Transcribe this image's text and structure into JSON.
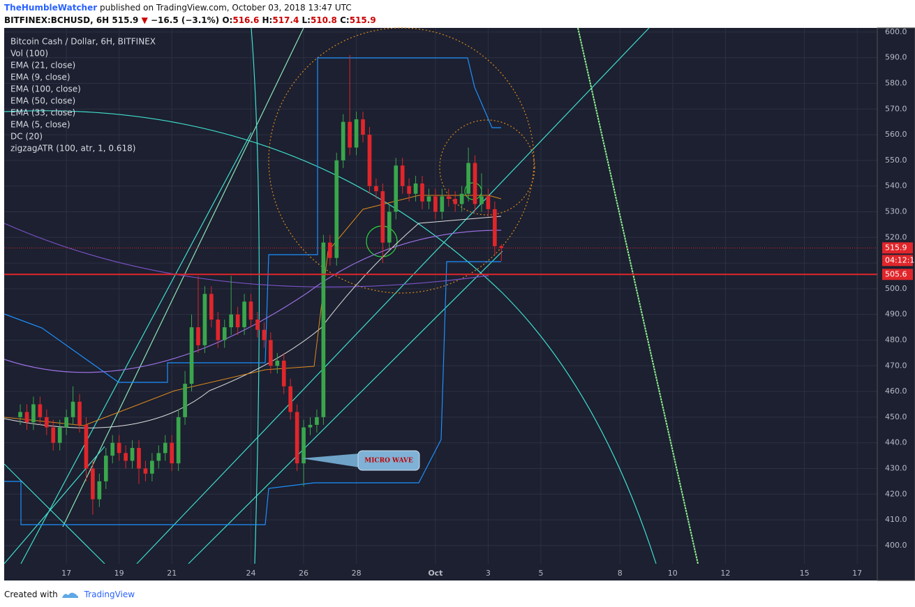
{
  "header": {
    "author": "TheHumbleWatcher",
    "published": "published on TradingView.com, October 03, 2018 13:47 UTC",
    "symbol": "BITFINEX:BCHUSD, 6H",
    "last": "515.9",
    "arrow": "▼",
    "change": "−16.5 (−3.1%)",
    "o_label": "O:",
    "o": "516.6",
    "h_label": "H:",
    "h": "517.4",
    "l_label": "L:",
    "l": "510.8",
    "c_label": "C:",
    "c": "515.9"
  },
  "footer": {
    "created": "Created with",
    "brand": "TradingView"
  },
  "chart_data": {
    "type": "candlestick",
    "legend": [
      "Bitcoin Cash / Dollar, 6H, BITFINEX",
      "Vol (100)",
      "EMA (21, close)",
      "EMA (9, close)",
      "EMA (100, close)",
      "EMA (50, close)",
      "EMA (33, close)",
      "EMA (5, close)",
      "DC (20)",
      "zigzagATR (100, atr, 1, 0.618)"
    ],
    "x": [
      15.25,
      15.5,
      15.75,
      16,
      16.25,
      16.5,
      16.75,
      17,
      17.25,
      17.5,
      17.75,
      18,
      18.25,
      18.5,
      18.75,
      19,
      19.25,
      19.5,
      19.75,
      20,
      20.25,
      20.5,
      20.75,
      21,
      21.25,
      21.5,
      21.75,
      22,
      22.25,
      22.5,
      22.75,
      23,
      23.25,
      23.5,
      23.75,
      24,
      24.25,
      24.5,
      24.75,
      25,
      25.25,
      25.5,
      25.75,
      26,
      26.25,
      26.5,
      26.75,
      27,
      27.25,
      27.5,
      27.75,
      28,
      28.25,
      28.5,
      28.75,
      29,
      29.25,
      29.5,
      29.75,
      30,
      30.25,
      30.5,
      30.75,
      31,
      31.25,
      31.5,
      31.75,
      32,
      32.25,
      32.5,
      32.75,
      33,
      33.25,
      33.5
    ],
    "open": [
      450,
      452,
      448,
      455,
      450,
      446,
      440,
      446,
      450,
      456,
      447,
      430,
      418,
      425,
      435,
      440,
      436,
      433,
      438,
      430,
      428,
      433,
      436,
      440,
      432,
      450,
      463,
      485,
      478,
      498,
      488,
      480,
      485,
      490,
      485,
      495,
      488,
      484,
      480,
      470,
      472,
      462,
      452,
      432,
      446,
      447,
      450,
      518,
      512,
      550,
      565,
      555,
      566,
      560,
      540,
      538,
      518,
      530,
      548,
      540,
      537,
      541,
      534,
      536,
      530,
      536,
      535,
      533,
      537,
      549,
      533,
      536,
      531,
      516.6
    ],
    "high": [
      455,
      455,
      458,
      458,
      453,
      449,
      449,
      453,
      462,
      459,
      450,
      433,
      428,
      438,
      443,
      443,
      439,
      441,
      441,
      433,
      436,
      439,
      443,
      443,
      453,
      468,
      490,
      505,
      501,
      501,
      491,
      488,
      505,
      493,
      498,
      498,
      491,
      487,
      483,
      475,
      475,
      465,
      455,
      449,
      450,
      453,
      521,
      521,
      553,
      568,
      591,
      569,
      569,
      563,
      543,
      541,
      533,
      551,
      551,
      543,
      544,
      544,
      539,
      539,
      539,
      539,
      538,
      540,
      555,
      552,
      545,
      539,
      534,
      517.4
    ],
    "low": [
      447,
      445,
      445,
      447,
      443,
      437,
      437,
      443,
      447,
      444,
      425,
      412,
      415,
      422,
      432,
      433,
      430,
      430,
      424,
      425,
      425,
      430,
      433,
      429,
      429,
      447,
      460,
      475,
      475,
      485,
      477,
      477,
      482,
      482,
      482,
      485,
      481,
      477,
      467,
      467,
      459,
      449,
      429,
      423,
      443,
      444,
      447,
      509,
      509,
      547,
      552,
      552,
      557,
      537,
      535,
      510,
      515,
      527,
      537,
      534,
      534,
      531,
      531,
      527,
      527,
      532,
      530,
      530,
      534,
      530,
      530,
      528,
      513,
      510.8
    ],
    "close": [
      452,
      448,
      455,
      450,
      446,
      440,
      446,
      450,
      456,
      447,
      430,
      418,
      425,
      435,
      440,
      436,
      433,
      438,
      430,
      428,
      433,
      436,
      440,
      432,
      450,
      463,
      485,
      478,
      498,
      488,
      480,
      485,
      490,
      485,
      495,
      488,
      484,
      480,
      470,
      472,
      462,
      452,
      432,
      446,
      447,
      450,
      518,
      512,
      550,
      565,
      555,
      566,
      560,
      540,
      538,
      518,
      530,
      548,
      540,
      537,
      541,
      534,
      536,
      530,
      536,
      535,
      533,
      537,
      549,
      533,
      536,
      531,
      516.6,
      515.9
    ],
    "up_color": "#3aa64c",
    "down_color": "#e0262b",
    "xlim": [
      14.64,
      47.71
    ],
    "xticks": [
      17,
      19,
      21,
      24,
      26,
      28,
      {
        "value": 31,
        "label": "Oct"
      },
      {
        "value": 33,
        "label": "3"
      },
      {
        "value": 35,
        "label": "5"
      },
      {
        "value": 38,
        "label": "8"
      },
      {
        "value": 40,
        "label": "10"
      },
      {
        "value": 42,
        "label": "12"
      },
      {
        "value": 45,
        "label": "15"
      },
      {
        "value": 47,
        "label": "17"
      }
    ],
    "ylim": [
      392.9,
      601.6
    ],
    "yticks": [
      {
        "value": 400,
        "label": "400.0"
      },
      {
        "value": 410,
        "label": "410.0"
      },
      {
        "value": 420,
        "label": "420.0"
      },
      {
        "value": 430,
        "label": "430.0"
      },
      {
        "value": 440,
        "label": "440.0"
      },
      {
        "value": 450,
        "label": "450.0"
      },
      {
        "value": 460,
        "label": "460.0"
      },
      {
        "value": 470,
        "label": "470.0"
      },
      {
        "value": 480,
        "label": "480.0"
      },
      {
        "value": 490,
        "label": "490.0"
      },
      {
        "value": 500,
        "label": "500.0"
      },
      {
        "value": 510,
        "label": "510.0"
      },
      {
        "value": 520,
        "label": "520.0"
      },
      {
        "value": 530,
        "label": "530.0"
      },
      {
        "value": 540,
        "label": "540.0"
      },
      {
        "value": 550,
        "label": "550.0"
      },
      {
        "value": 560,
        "label": "560.0"
      },
      {
        "value": 570,
        "label": "570.0"
      },
      {
        "value": 580,
        "label": "580.0"
      },
      {
        "value": 590,
        "label": "590.0"
      },
      {
        "value": 600,
        "label": "600.0"
      }
    ],
    "grid": true,
    "last_price": {
      "value": 515.9,
      "label": "515.9",
      "color": "#e0262b"
    },
    "countdown": "04:12:1",
    "hline": {
      "value": 505.6,
      "label": "505.6",
      "color": "#e0262b"
    },
    "annotation": "MICRO WAVE"
  }
}
